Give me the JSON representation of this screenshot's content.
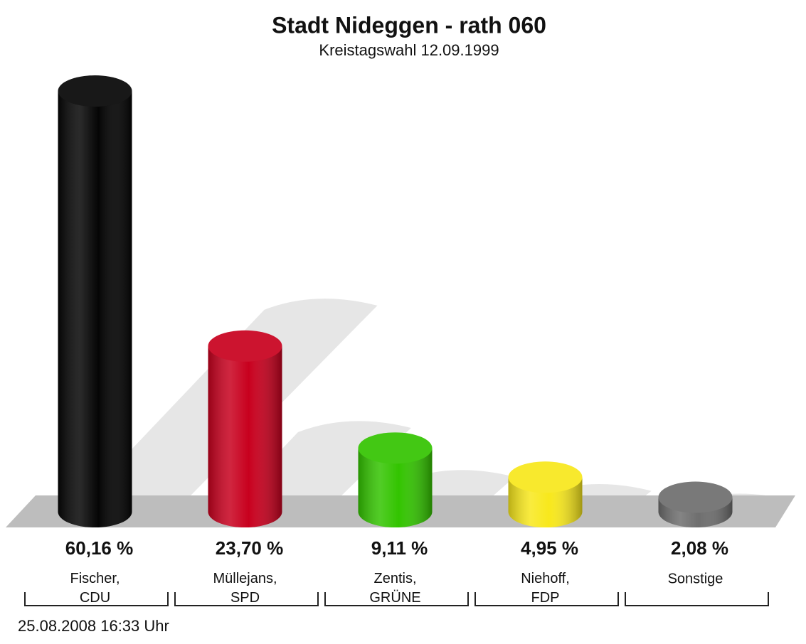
{
  "chart_data": {
    "type": "bar",
    "title": "Stadt Nideggen - rath 060",
    "subtitle": "Kreistagswahl 12.09.1999",
    "categories": [
      "Fischer, CDU",
      "Müllejans, SPD",
      "Zentis, GRÜNE",
      "Niehoff, FDP",
      "Sonstige"
    ],
    "values": [
      60.16,
      23.7,
      9.11,
      4.95,
      2.08
    ],
    "value_labels": [
      "60,16 %",
      "23,70 %",
      "9,11 %",
      "4,95 %",
      "2,08 %"
    ],
    "colors": [
      "#050505",
      "#c8001e",
      "#33c400",
      "#f8e81c",
      "#6e6e6e"
    ],
    "footer": "25.08.2008 16:33 Uhr"
  }
}
